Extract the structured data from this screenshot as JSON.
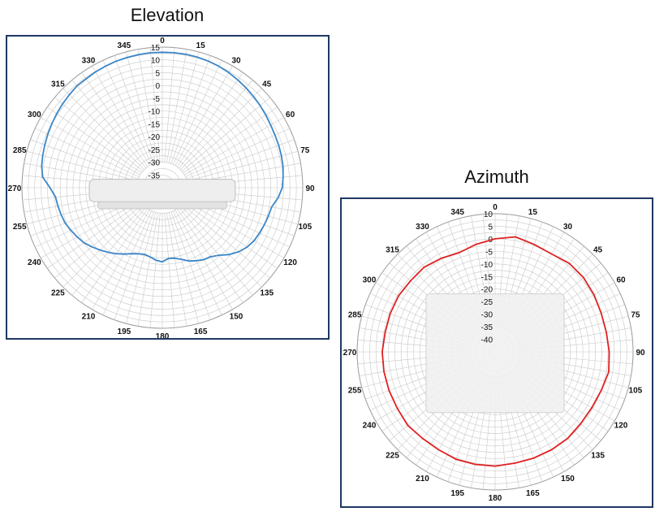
{
  "chart_data": [
    {
      "type": "polar-line",
      "title": "Elevation",
      "angle_labels": [
        "0",
        "15",
        "30",
        "45",
        "60",
        "75",
        "90",
        "105",
        "120",
        "135",
        "150",
        "165",
        "180",
        "195",
        "210",
        "225",
        "240",
        "255",
        "270",
        "285",
        "300",
        "315",
        "330",
        "345"
      ],
      "radial_labels": [
        "15",
        "10",
        "5",
        "0",
        "-5",
        "-10",
        "-15",
        "-20",
        "-25",
        "-30",
        "-35"
      ],
      "rlim": [
        -40,
        15
      ],
      "series": [
        {
          "color": "#3a86c8",
          "theta": [
            270,
            275,
            280,
            285,
            290,
            295,
            300,
            305,
            310,
            315,
            320,
            325,
            330,
            335,
            340,
            345,
            350,
            355,
            0,
            5,
            10,
            15,
            20,
            25,
            30,
            35,
            40,
            45,
            50,
            55,
            60,
            65,
            70,
            75,
            80,
            85,
            90,
            95,
            100,
            105,
            110,
            115,
            120,
            125,
            130,
            135,
            140,
            145,
            150,
            155,
            160,
            165,
            170,
            175,
            180,
            185,
            190,
            195,
            200,
            205,
            210,
            215,
            220,
            225,
            230,
            235,
            240,
            245,
            250,
            255,
            260,
            265,
            270
          ],
          "r": [
            4,
            7,
            8,
            8.5,
            9,
            9.5,
            10,
            10.5,
            11,
            11.5,
            12,
            12,
            12.3,
            12.5,
            12.7,
            12.8,
            12.9,
            13,
            13,
            13,
            13,
            12.9,
            12.7,
            12.4,
            12,
            11.5,
            11,
            10.5,
            10,
            9.5,
            9,
            8.7,
            8.5,
            8.3,
            8,
            7.5,
            7,
            5.5,
            3.5,
            3,
            2.5,
            2,
            1.5,
            0.5,
            -1,
            -3,
            -5.5,
            -7,
            -7.5,
            -8.5,
            -9.5,
            -11,
            -12,
            -12.2,
            -11,
            -11.5,
            -12.5,
            -13,
            -12.5,
            -11.5,
            -10,
            -8.5,
            -7,
            -5.5,
            -4,
            -2.5,
            -1.5,
            -0.5,
            0.5,
            1,
            1.5,
            2,
            4
          ]
        }
      ]
    },
    {
      "type": "polar-line",
      "title": "Azimuth",
      "angle_labels": [
        "0",
        "15",
        "30",
        "45",
        "60",
        "75",
        "90",
        "105",
        "120",
        "135",
        "150",
        "165",
        "180",
        "195",
        "210",
        "225",
        "240",
        "255",
        "270",
        "285",
        "300",
        "315",
        "330",
        "345"
      ],
      "radial_labels": [
        "10",
        "5",
        "0",
        "-5",
        "-10",
        "-15",
        "-20",
        "-25",
        "-30",
        "-35",
        "-40"
      ],
      "rlim": [
        -45,
        10
      ],
      "series": [
        {
          "color": "#e02020",
          "theta": [
            0,
            10,
            20,
            30,
            40,
            50,
            60,
            70,
            80,
            90,
            100,
            110,
            120,
            130,
            140,
            150,
            160,
            170,
            180,
            190,
            200,
            210,
            220,
            230,
            240,
            250,
            260,
            270,
            280,
            290,
            300,
            310,
            320,
            330,
            340,
            350,
            360
          ],
          "r": [
            0,
            1.5,
            0.5,
            0,
            1,
            1,
            0.5,
            0,
            0,
            0.5,
            1,
            0,
            -0.5,
            -0.5,
            0,
            0,
            0,
            0,
            0.5,
            0.5,
            0.5,
            0,
            0,
            0.5,
            0,
            0,
            0,
            0,
            -0.5,
            -0.5,
            -0.5,
            -1,
            -1,
            -2,
            -3,
            -1.5,
            0
          ]
        }
      ]
    }
  ]
}
